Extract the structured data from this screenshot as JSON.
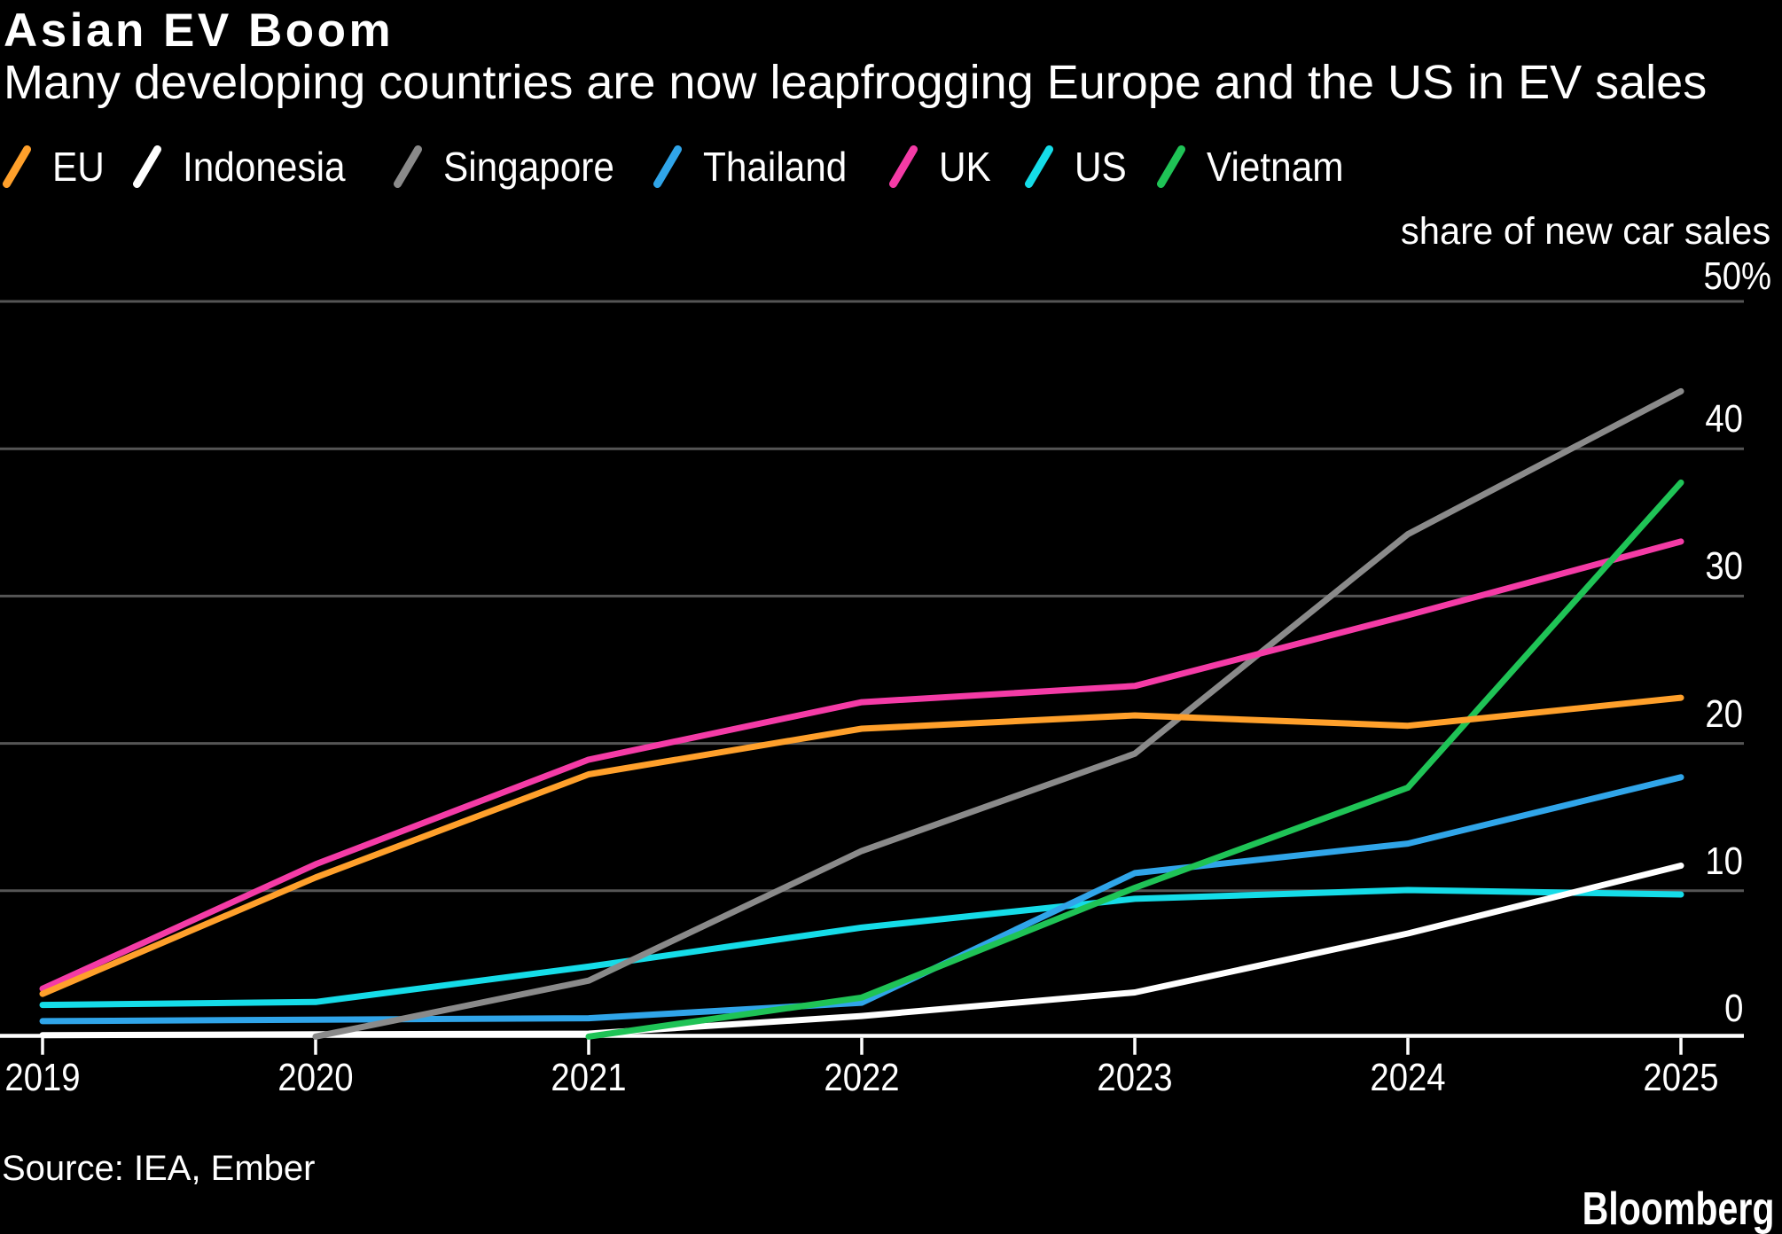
{
  "header": {
    "title": "Asian EV Boom",
    "subtitle": "Many developing countries are now leapfrogging Europe and the US in EV sales"
  },
  "chart_data": {
    "type": "line",
    "title": "Asian EV Boom",
    "subtitle": "Many developing countries are now leapfrogging Europe and the US in EV sales",
    "unit_label": "share of new car sales",
    "x": [
      2019,
      2020,
      2021,
      2022,
      2023,
      2024,
      2025
    ],
    "xlabel": "",
    "ylabel": "share of new car sales",
    "ylim": [
      0,
      50
    ],
    "yticks": [
      0,
      10,
      20,
      30,
      40,
      50
    ],
    "ytick_labels": [
      "0",
      "10",
      "20",
      "30",
      "40",
      "50%"
    ],
    "grid": "horizontal",
    "legend_position": "top",
    "series": [
      {
        "name": "EU",
        "color": "#ffa02b",
        "values": [
          3.0,
          10.9,
          17.9,
          21.0,
          21.9,
          21.2,
          23.1
        ]
      },
      {
        "name": "Indonesia",
        "color": "#ffffff",
        "values": [
          0.2,
          0.25,
          0.3,
          1.5,
          3.1,
          7.1,
          11.7
        ]
      },
      {
        "name": "Singapore",
        "color": "#8a8a8a",
        "values": [
          null,
          0.1,
          3.9,
          12.7,
          19.3,
          34.2,
          43.9
        ]
      },
      {
        "name": "Thailand",
        "color": "#30a5e9",
        "values": [
          1.15,
          1.25,
          1.35,
          2.4,
          11.2,
          13.2,
          17.7
        ]
      },
      {
        "name": "UK",
        "color": "#f43ba6",
        "values": [
          3.35,
          11.8,
          18.9,
          22.8,
          23.9,
          28.7,
          33.7
        ]
      },
      {
        "name": "US",
        "color": "#15dce8",
        "values": [
          2.25,
          2.45,
          4.85,
          7.5,
          9.45,
          10.05,
          9.75
        ]
      },
      {
        "name": "Vietnam",
        "color": "#1fc356",
        "values": [
          null,
          null,
          0.1,
          2.75,
          10.2,
          17.0,
          37.7
        ]
      }
    ]
  },
  "footer": {
    "source": "Source: IEA, Ember",
    "brand": "Bloomberg"
  }
}
